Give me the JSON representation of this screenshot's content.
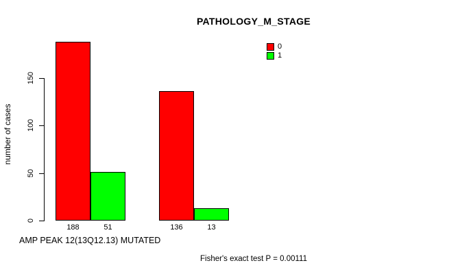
{
  "chart_data": {
    "type": "bar",
    "title": "PATHOLOGY_M_STAGE",
    "ylabel": "number of cases",
    "xlabel": "AMP PEAK 12(13Q12.13) MUTATED",
    "annotation": "Fisher's exact test P = 0.00111",
    "ylim": [
      0,
      195
    ],
    "yticks": [
      0,
      50,
      100,
      150
    ],
    "grid": false,
    "legend_position": "top-right",
    "series": [
      {
        "name": "0",
        "color": "#ff0000",
        "values": [
          188,
          136
        ]
      },
      {
        "name": "1",
        "color": "#00ff00",
        "values": [
          51,
          13
        ]
      }
    ],
    "bar_value_labels": [
      "188",
      "51",
      "136",
      "13"
    ]
  }
}
